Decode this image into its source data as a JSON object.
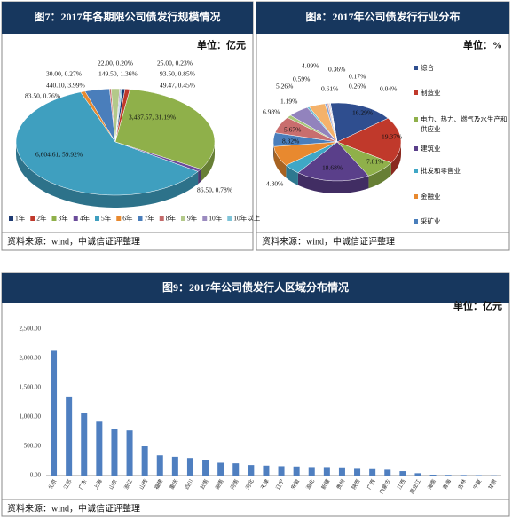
{
  "chart_data": [
    {
      "type": "pie",
      "title": "图7：2017年各期限公司债发行规模情况",
      "subtitle": "单位：亿元",
      "source": "资料来源：wind，中诚信证评整理",
      "categories": [
        "1年",
        "2年",
        "3年",
        "4年",
        "5年",
        "6年",
        "7年",
        "8年",
        "9年",
        "10年",
        "10年以上"
      ],
      "values": [
        49.47,
        86.5,
        3437.57,
        93.5,
        6604.61,
        83.5,
        440.1,
        30.0,
        149.5,
        22.0,
        25.0
      ],
      "value_labels": [
        "49.47, 0.45%",
        "86.50, 0.78%",
        "3,437.57, 31.19%",
        "93.50, 0.85%",
        "6,604.61, 59.92%",
        "83.50, 0.76%",
        "440.10, 3.99%",
        "30.00, 0.27%",
        "149.50, 1.36%",
        "22.00, 0.20%",
        "25.00, 0.23%"
      ],
      "colors": [
        "#1f3b73",
        "#c0392b",
        "#8fb04a",
        "#6b4c9a",
        "#3f9fbf",
        "#e8892f",
        "#4a7ebb",
        "#c46a6a",
        "#b3c98a",
        "#9b8bbf",
        "#7fc4d8"
      ]
    },
    {
      "type": "pie",
      "title": "图8：2017年公司债发行行业分布",
      "subtitle": "单位：%",
      "source": "资料来源：wind，中诚信证评整理",
      "categories": [
        "综合",
        "制造业",
        "电力、热力、燃气及水生产和供应业",
        "建筑业",
        "批发和零售业",
        "金融业",
        "采矿业",
        null,
        null,
        null,
        null,
        null,
        null,
        null,
        null,
        null,
        null
      ],
      "values": [
        16.29,
        19.37,
        7.81,
        18.68,
        4.3,
        8.32,
        5.67,
        6.98,
        1.19,
        5.26,
        0.59,
        4.09,
        0.61,
        0.36,
        0.17,
        0.26,
        0.04
      ],
      "value_labels": [
        "16.29%",
        "19.37%",
        "7.81%",
        "18.68%",
        "4.30%",
        "8.32%",
        "5.67%",
        "6.98%",
        "1.19%",
        "5.26%",
        "0.59%",
        "4.09%",
        "0.61%",
        "0.36%",
        "0.17%",
        "0.26%",
        "0.04%"
      ],
      "colors": [
        "#2f4e8f",
        "#c0392b",
        "#8fb04a",
        "#5a3f8a",
        "#3fa7c6",
        "#e8892f",
        "#4a7ebb",
        "#c96e6e",
        "#a9c77b",
        "#9283bd",
        "#6fbfd6",
        "#f4b26b",
        "#8aa6d6",
        "#dba0a0",
        "#c8d9a8",
        "#b9afd4",
        "#a3d5e3"
      ]
    },
    {
      "type": "bar",
      "title": "图9：2017年公司债发行人区域分布情况",
      "subtitle": "单位：亿元",
      "source": "资料来源：wind，中诚信证评整理",
      "categories": [
        "北京",
        "江苏",
        "广东",
        "上海",
        "山东",
        "浙江",
        "山西",
        "福建",
        "重庆",
        "四川",
        "云南",
        "湖南",
        "河南",
        "河北",
        "天津",
        "辽宁",
        "安徽",
        "湖北",
        "新疆",
        "贵州",
        "陕西",
        "广西",
        "内蒙古",
        "江西",
        "黑龙江",
        "海南",
        "青海",
        "吉林",
        "宁夏",
        "甘肃"
      ],
      "values": [
        2130,
        1350,
        1070,
        920,
        790,
        770,
        500,
        345,
        320,
        300,
        260,
        220,
        210,
        180,
        170,
        160,
        155,
        145,
        145,
        140,
        115,
        110,
        100,
        75,
        40,
        15,
        12,
        10,
        8,
        5
      ],
      "color": "#4f7fc0",
      "grid": false,
      "ylim": [
        0,
        2500
      ],
      "yticks": [
        {
          "value": 0,
          "label": "0.00"
        },
        {
          "value": 500,
          "label": "500.00"
        },
        {
          "value": 1000,
          "label": "1,000.00"
        },
        {
          "value": 1500,
          "label": "1,500.00"
        },
        {
          "value": 2000,
          "label": "2,000.00"
        },
        {
          "value": 2500,
          "label": "2,500.00"
        }
      ]
    }
  ]
}
